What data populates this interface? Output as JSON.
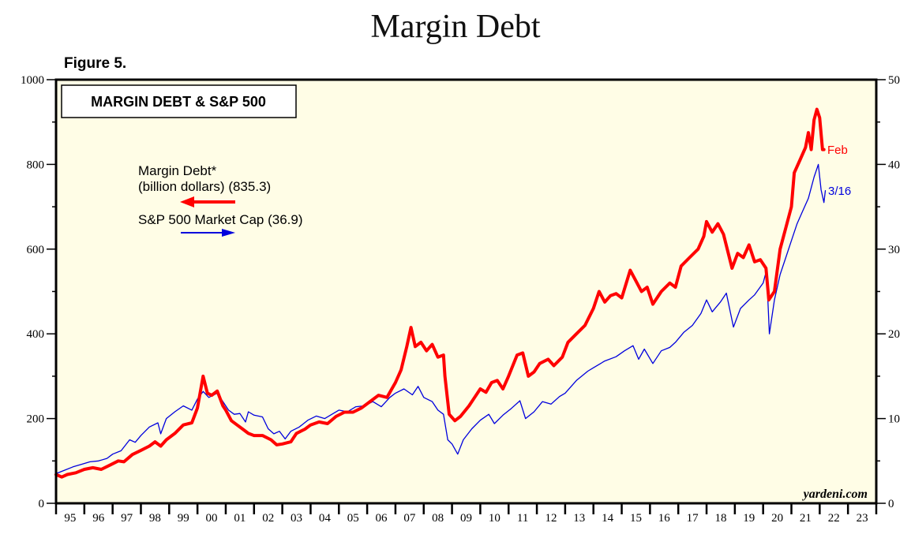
{
  "page": {
    "title": "Margin Debt",
    "figure_label": "Figure 5."
  },
  "chart_data": {
    "type": "line",
    "title": "MARGIN DEBT & S&P 500",
    "xlabel": "",
    "ylabel_left": "",
    "ylabel_right": "",
    "x_range": [
      1995,
      2024
    ],
    "x_tick_labels": [
      "95",
      "96",
      "97",
      "98",
      "99",
      "00",
      "01",
      "02",
      "03",
      "04",
      "05",
      "06",
      "07",
      "08",
      "09",
      "10",
      "11",
      "12",
      "13",
      "14",
      "15",
      "16",
      "17",
      "18",
      "19",
      "20",
      "21",
      "22",
      "23"
    ],
    "ylim_left": [
      0,
      1000
    ],
    "y_ticks_left": [
      0,
      200,
      400,
      600,
      800,
      1000
    ],
    "ylim_right": [
      0,
      50
    ],
    "y_ticks_right": [
      0,
      10,
      20,
      30,
      40,
      50
    ],
    "grid": false,
    "background": "#fffde6",
    "legend": [
      {
        "label_line1": "Margin Debt*",
        "label_line2": "(billion dollars) (835.3)",
        "color": "#ff0000",
        "axis": "left",
        "arrow": "left"
      },
      {
        "label_line1": "S&P 500 Market Cap (36.9)",
        "color": "#0000dd",
        "axis": "right",
        "arrow": "right"
      }
    ],
    "legend_position": "upper-left",
    "series": [
      {
        "name": "Margin Debt* (billion dollars)",
        "axis": "left",
        "color": "#ff0000",
        "end_label": "Feb",
        "points": [
          [
            1995.0,
            68
          ],
          [
            1995.2,
            62
          ],
          [
            1995.4,
            68
          ],
          [
            1995.7,
            72
          ],
          [
            1996.0,
            80
          ],
          [
            1996.3,
            84
          ],
          [
            1996.6,
            80
          ],
          [
            1996.9,
            90
          ],
          [
            1997.2,
            100
          ],
          [
            1997.4,
            98
          ],
          [
            1997.7,
            115
          ],
          [
            1998.0,
            125
          ],
          [
            1998.3,
            135
          ],
          [
            1998.5,
            145
          ],
          [
            1998.7,
            135
          ],
          [
            1998.9,
            150
          ],
          [
            1999.2,
            165
          ],
          [
            1999.5,
            185
          ],
          [
            1999.8,
            190
          ],
          [
            2000.0,
            225
          ],
          [
            2000.2,
            300
          ],
          [
            2000.35,
            260
          ],
          [
            2000.5,
            255
          ],
          [
            2000.7,
            265
          ],
          [
            2000.9,
            230
          ],
          [
            2001.0,
            220
          ],
          [
            2001.2,
            195
          ],
          [
            2001.4,
            185
          ],
          [
            2001.6,
            175
          ],
          [
            2001.8,
            165
          ],
          [
            2002.0,
            160
          ],
          [
            2002.3,
            160
          ],
          [
            2002.6,
            150
          ],
          [
            2002.8,
            138
          ],
          [
            2003.0,
            140
          ],
          [
            2003.3,
            145
          ],
          [
            2003.5,
            165
          ],
          [
            2003.8,
            175
          ],
          [
            2004.0,
            185
          ],
          [
            2004.3,
            192
          ],
          [
            2004.6,
            188
          ],
          [
            2004.9,
            205
          ],
          [
            2005.2,
            215
          ],
          [
            2005.5,
            215
          ],
          [
            2005.8,
            225
          ],
          [
            2006.1,
            240
          ],
          [
            2006.4,
            255
          ],
          [
            2006.7,
            250
          ],
          [
            2007.0,
            285
          ],
          [
            2007.2,
            315
          ],
          [
            2007.4,
            370
          ],
          [
            2007.55,
            415
          ],
          [
            2007.7,
            370
          ],
          [
            2007.9,
            380
          ],
          [
            2008.1,
            360
          ],
          [
            2008.3,
            375
          ],
          [
            2008.5,
            345
          ],
          [
            2008.7,
            350
          ],
          [
            2008.75,
            300
          ],
          [
            2008.9,
            210
          ],
          [
            2009.1,
            195
          ],
          [
            2009.3,
            205
          ],
          [
            2009.6,
            230
          ],
          [
            2009.8,
            250
          ],
          [
            2010.0,
            270
          ],
          [
            2010.2,
            262
          ],
          [
            2010.4,
            285
          ],
          [
            2010.6,
            290
          ],
          [
            2010.8,
            270
          ],
          [
            2011.0,
            300
          ],
          [
            2011.3,
            350
          ],
          [
            2011.5,
            355
          ],
          [
            2011.7,
            300
          ],
          [
            2011.9,
            310
          ],
          [
            2012.1,
            330
          ],
          [
            2012.4,
            340
          ],
          [
            2012.6,
            325
          ],
          [
            2012.9,
            345
          ],
          [
            2013.1,
            380
          ],
          [
            2013.4,
            400
          ],
          [
            2013.7,
            420
          ],
          [
            2014.0,
            460
          ],
          [
            2014.2,
            500
          ],
          [
            2014.4,
            475
          ],
          [
            2014.6,
            490
          ],
          [
            2014.8,
            495
          ],
          [
            2015.0,
            485
          ],
          [
            2015.3,
            550
          ],
          [
            2015.5,
            525
          ],
          [
            2015.7,
            500
          ],
          [
            2015.9,
            510
          ],
          [
            2016.1,
            470
          ],
          [
            2016.4,
            500
          ],
          [
            2016.7,
            520
          ],
          [
            2016.9,
            510
          ],
          [
            2017.1,
            560
          ],
          [
            2017.4,
            580
          ],
          [
            2017.7,
            600
          ],
          [
            2017.9,
            630
          ],
          [
            2018.0,
            665
          ],
          [
            2018.2,
            640
          ],
          [
            2018.4,
            660
          ],
          [
            2018.6,
            635
          ],
          [
            2018.9,
            555
          ],
          [
            2019.1,
            590
          ],
          [
            2019.3,
            580
          ],
          [
            2019.5,
            610
          ],
          [
            2019.7,
            570
          ],
          [
            2019.9,
            575
          ],
          [
            2020.1,
            555
          ],
          [
            2020.2,
            480
          ],
          [
            2020.4,
            500
          ],
          [
            2020.6,
            600
          ],
          [
            2020.8,
            650
          ],
          [
            2021.0,
            700
          ],
          [
            2021.1,
            780
          ],
          [
            2021.3,
            810
          ],
          [
            2021.5,
            840
          ],
          [
            2021.6,
            875
          ],
          [
            2021.7,
            835
          ],
          [
            2021.8,
            905
          ],
          [
            2021.9,
            930
          ],
          [
            2022.0,
            910
          ],
          [
            2022.1,
            835
          ],
          [
            2022.15,
            835
          ]
        ]
      },
      {
        "name": "S&P 500 Market Cap",
        "axis": "right",
        "color": "#0000dd",
        "end_label": "3/16",
        "points": [
          [
            1995.0,
            3.5
          ],
          [
            1995.3,
            3.9
          ],
          [
            1995.6,
            4.3
          ],
          [
            1995.9,
            4.6
          ],
          [
            1996.2,
            4.9
          ],
          [
            1996.5,
            5.0
          ],
          [
            1996.8,
            5.3
          ],
          [
            1997.0,
            5.8
          ],
          [
            1997.3,
            6.2
          ],
          [
            1997.6,
            7.5
          ],
          [
            1997.8,
            7.2
          ],
          [
            1998.0,
            8.0
          ],
          [
            1998.3,
            9.0
          ],
          [
            1998.6,
            9.5
          ],
          [
            1998.7,
            8.2
          ],
          [
            1998.9,
            10.0
          ],
          [
            1999.2,
            10.8
          ],
          [
            1999.5,
            11.5
          ],
          [
            1999.8,
            11.0
          ],
          [
            2000.0,
            12.3
          ],
          [
            2000.2,
            13.2
          ],
          [
            2000.4,
            12.5
          ],
          [
            2000.7,
            13.0
          ],
          [
            2000.9,
            12.0
          ],
          [
            2001.1,
            11.0
          ],
          [
            2001.3,
            10.5
          ],
          [
            2001.5,
            10.6
          ],
          [
            2001.7,
            9.6
          ],
          [
            2001.8,
            10.8
          ],
          [
            2002.0,
            10.4
          ],
          [
            2002.3,
            10.2
          ],
          [
            2002.5,
            8.8
          ],
          [
            2002.7,
            8.2
          ],
          [
            2002.9,
            8.5
          ],
          [
            2003.1,
            7.6
          ],
          [
            2003.3,
            8.5
          ],
          [
            2003.6,
            9.0
          ],
          [
            2003.9,
            9.8
          ],
          [
            2004.2,
            10.3
          ],
          [
            2004.5,
            10.0
          ],
          [
            2004.8,
            10.6
          ],
          [
            2005.0,
            11.0
          ],
          [
            2005.3,
            10.8
          ],
          [
            2005.6,
            11.4
          ],
          [
            2005.9,
            11.5
          ],
          [
            2006.2,
            12.0
          ],
          [
            2006.5,
            11.4
          ],
          [
            2006.8,
            12.5
          ],
          [
            2007.0,
            13.0
          ],
          [
            2007.3,
            13.5
          ],
          [
            2007.6,
            12.8
          ],
          [
            2007.8,
            13.8
          ],
          [
            2008.0,
            12.5
          ],
          [
            2008.3,
            12.0
          ],
          [
            2008.5,
            11.0
          ],
          [
            2008.7,
            10.5
          ],
          [
            2008.85,
            7.5
          ],
          [
            2009.0,
            7.0
          ],
          [
            2009.2,
            5.8
          ],
          [
            2009.4,
            7.5
          ],
          [
            2009.7,
            8.8
          ],
          [
            2010.0,
            9.8
          ],
          [
            2010.3,
            10.5
          ],
          [
            2010.5,
            9.4
          ],
          [
            2010.8,
            10.4
          ],
          [
            2011.1,
            11.2
          ],
          [
            2011.4,
            12.1
          ],
          [
            2011.6,
            10.0
          ],
          [
            2011.9,
            10.8
          ],
          [
            2012.2,
            12.0
          ],
          [
            2012.5,
            11.7
          ],
          [
            2012.8,
            12.6
          ],
          [
            2013.0,
            13.0
          ],
          [
            2013.4,
            14.5
          ],
          [
            2013.8,
            15.6
          ],
          [
            2014.0,
            16.0
          ],
          [
            2014.4,
            16.8
          ],
          [
            2014.8,
            17.3
          ],
          [
            2015.1,
            18.0
          ],
          [
            2015.4,
            18.6
          ],
          [
            2015.6,
            17.0
          ],
          [
            2015.8,
            18.2
          ],
          [
            2016.1,
            16.5
          ],
          [
            2016.4,
            18.0
          ],
          [
            2016.7,
            18.4
          ],
          [
            2016.9,
            19.0
          ],
          [
            2017.2,
            20.2
          ],
          [
            2017.5,
            21.0
          ],
          [
            2017.8,
            22.4
          ],
          [
            2018.0,
            24.0
          ],
          [
            2018.2,
            22.6
          ],
          [
            2018.5,
            23.8
          ],
          [
            2018.7,
            24.8
          ],
          [
            2018.95,
            20.8
          ],
          [
            2019.2,
            23.0
          ],
          [
            2019.5,
            24.0
          ],
          [
            2019.7,
            24.6
          ],
          [
            2020.0,
            26.0
          ],
          [
            2020.12,
            27.5
          ],
          [
            2020.22,
            20.0
          ],
          [
            2020.4,
            24.0
          ],
          [
            2020.6,
            27.0
          ],
          [
            2020.8,
            29.0
          ],
          [
            2021.0,
            31.0
          ],
          [
            2021.2,
            33.0
          ],
          [
            2021.4,
            34.5
          ],
          [
            2021.6,
            36.0
          ],
          [
            2021.8,
            38.5
          ],
          [
            2021.95,
            40.0
          ],
          [
            2022.05,
            37.0
          ],
          [
            2022.15,
            35.5
          ],
          [
            2022.2,
            36.9
          ]
        ]
      }
    ],
    "watermark": "yardeni.com"
  }
}
